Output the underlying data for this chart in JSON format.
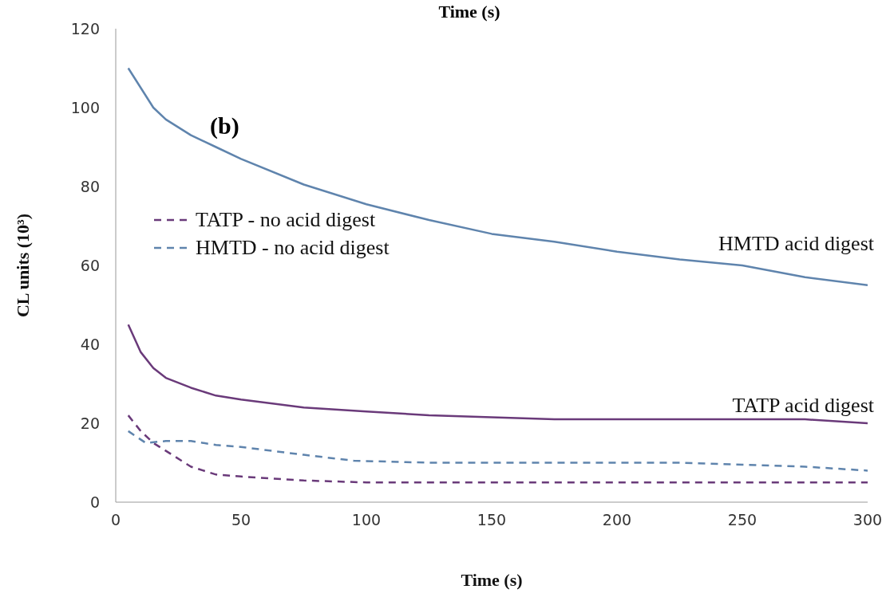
{
  "chart_data": {
    "type": "line",
    "xlabel": "Time (s)",
    "ylabel": "CL units (10³)",
    "annotations": [
      "Time (s)",
      "(b)"
    ],
    "xlim": [
      0,
      300
    ],
    "xticks": [
      0,
      50,
      100,
      150,
      200,
      250,
      300
    ],
    "ylim": [
      0,
      120
    ],
    "yticks": [
      0,
      20,
      40,
      60,
      80,
      100,
      120
    ],
    "grid": false,
    "legend": "left",
    "marker": "none",
    "series": [
      {
        "name": "HMTD acid digest",
        "color": "#5f84ad",
        "line_style": "solid",
        "x": [
          5,
          10,
          15,
          20,
          30,
          40,
          50,
          75,
          100,
          125,
          150,
          175,
          200,
          225,
          250,
          275,
          300
        ],
        "values": [
          110,
          105,
          100,
          97,
          93,
          90,
          87,
          80.5,
          75.5,
          71.5,
          68,
          66,
          63.5,
          61.5,
          60,
          57,
          55
        ]
      },
      {
        "name": "TATP acid digest",
        "color": "#6a3a7a",
        "line_style": "solid",
        "x": [
          5,
          10,
          15,
          20,
          30,
          40,
          50,
          75,
          100,
          125,
          150,
          175,
          200,
          225,
          250,
          275,
          300
        ],
        "values": [
          45,
          38,
          34,
          31.5,
          29,
          27,
          26,
          24,
          23,
          22,
          21.5,
          21,
          21,
          21,
          21,
          21,
          20
        ]
      },
      {
        "name": "TATP - no acid digest",
        "color": "#6a3a7a",
        "line_style": "dashed",
        "x": [
          5,
          10,
          15,
          20,
          30,
          40,
          50,
          75,
          100,
          125,
          150,
          175,
          200,
          225,
          250,
          275,
          300
        ],
        "values": [
          22,
          18,
          15,
          13,
          9,
          7,
          6.5,
          5.5,
          5,
          5,
          5,
          5,
          5,
          5,
          5,
          5,
          5
        ]
      },
      {
        "name": "HMTD - no acid digest",
        "color": "#5f84ad",
        "line_style": "dashed",
        "x": [
          5,
          12,
          20,
          30,
          40,
          50,
          75,
          95,
          125,
          150,
          175,
          200,
          225,
          250,
          275,
          300
        ],
        "values": [
          18,
          15,
          15.5,
          15.5,
          14.5,
          14,
          12,
          10.5,
          10,
          10,
          10,
          10,
          10,
          9.5,
          9,
          8
        ]
      }
    ]
  }
}
